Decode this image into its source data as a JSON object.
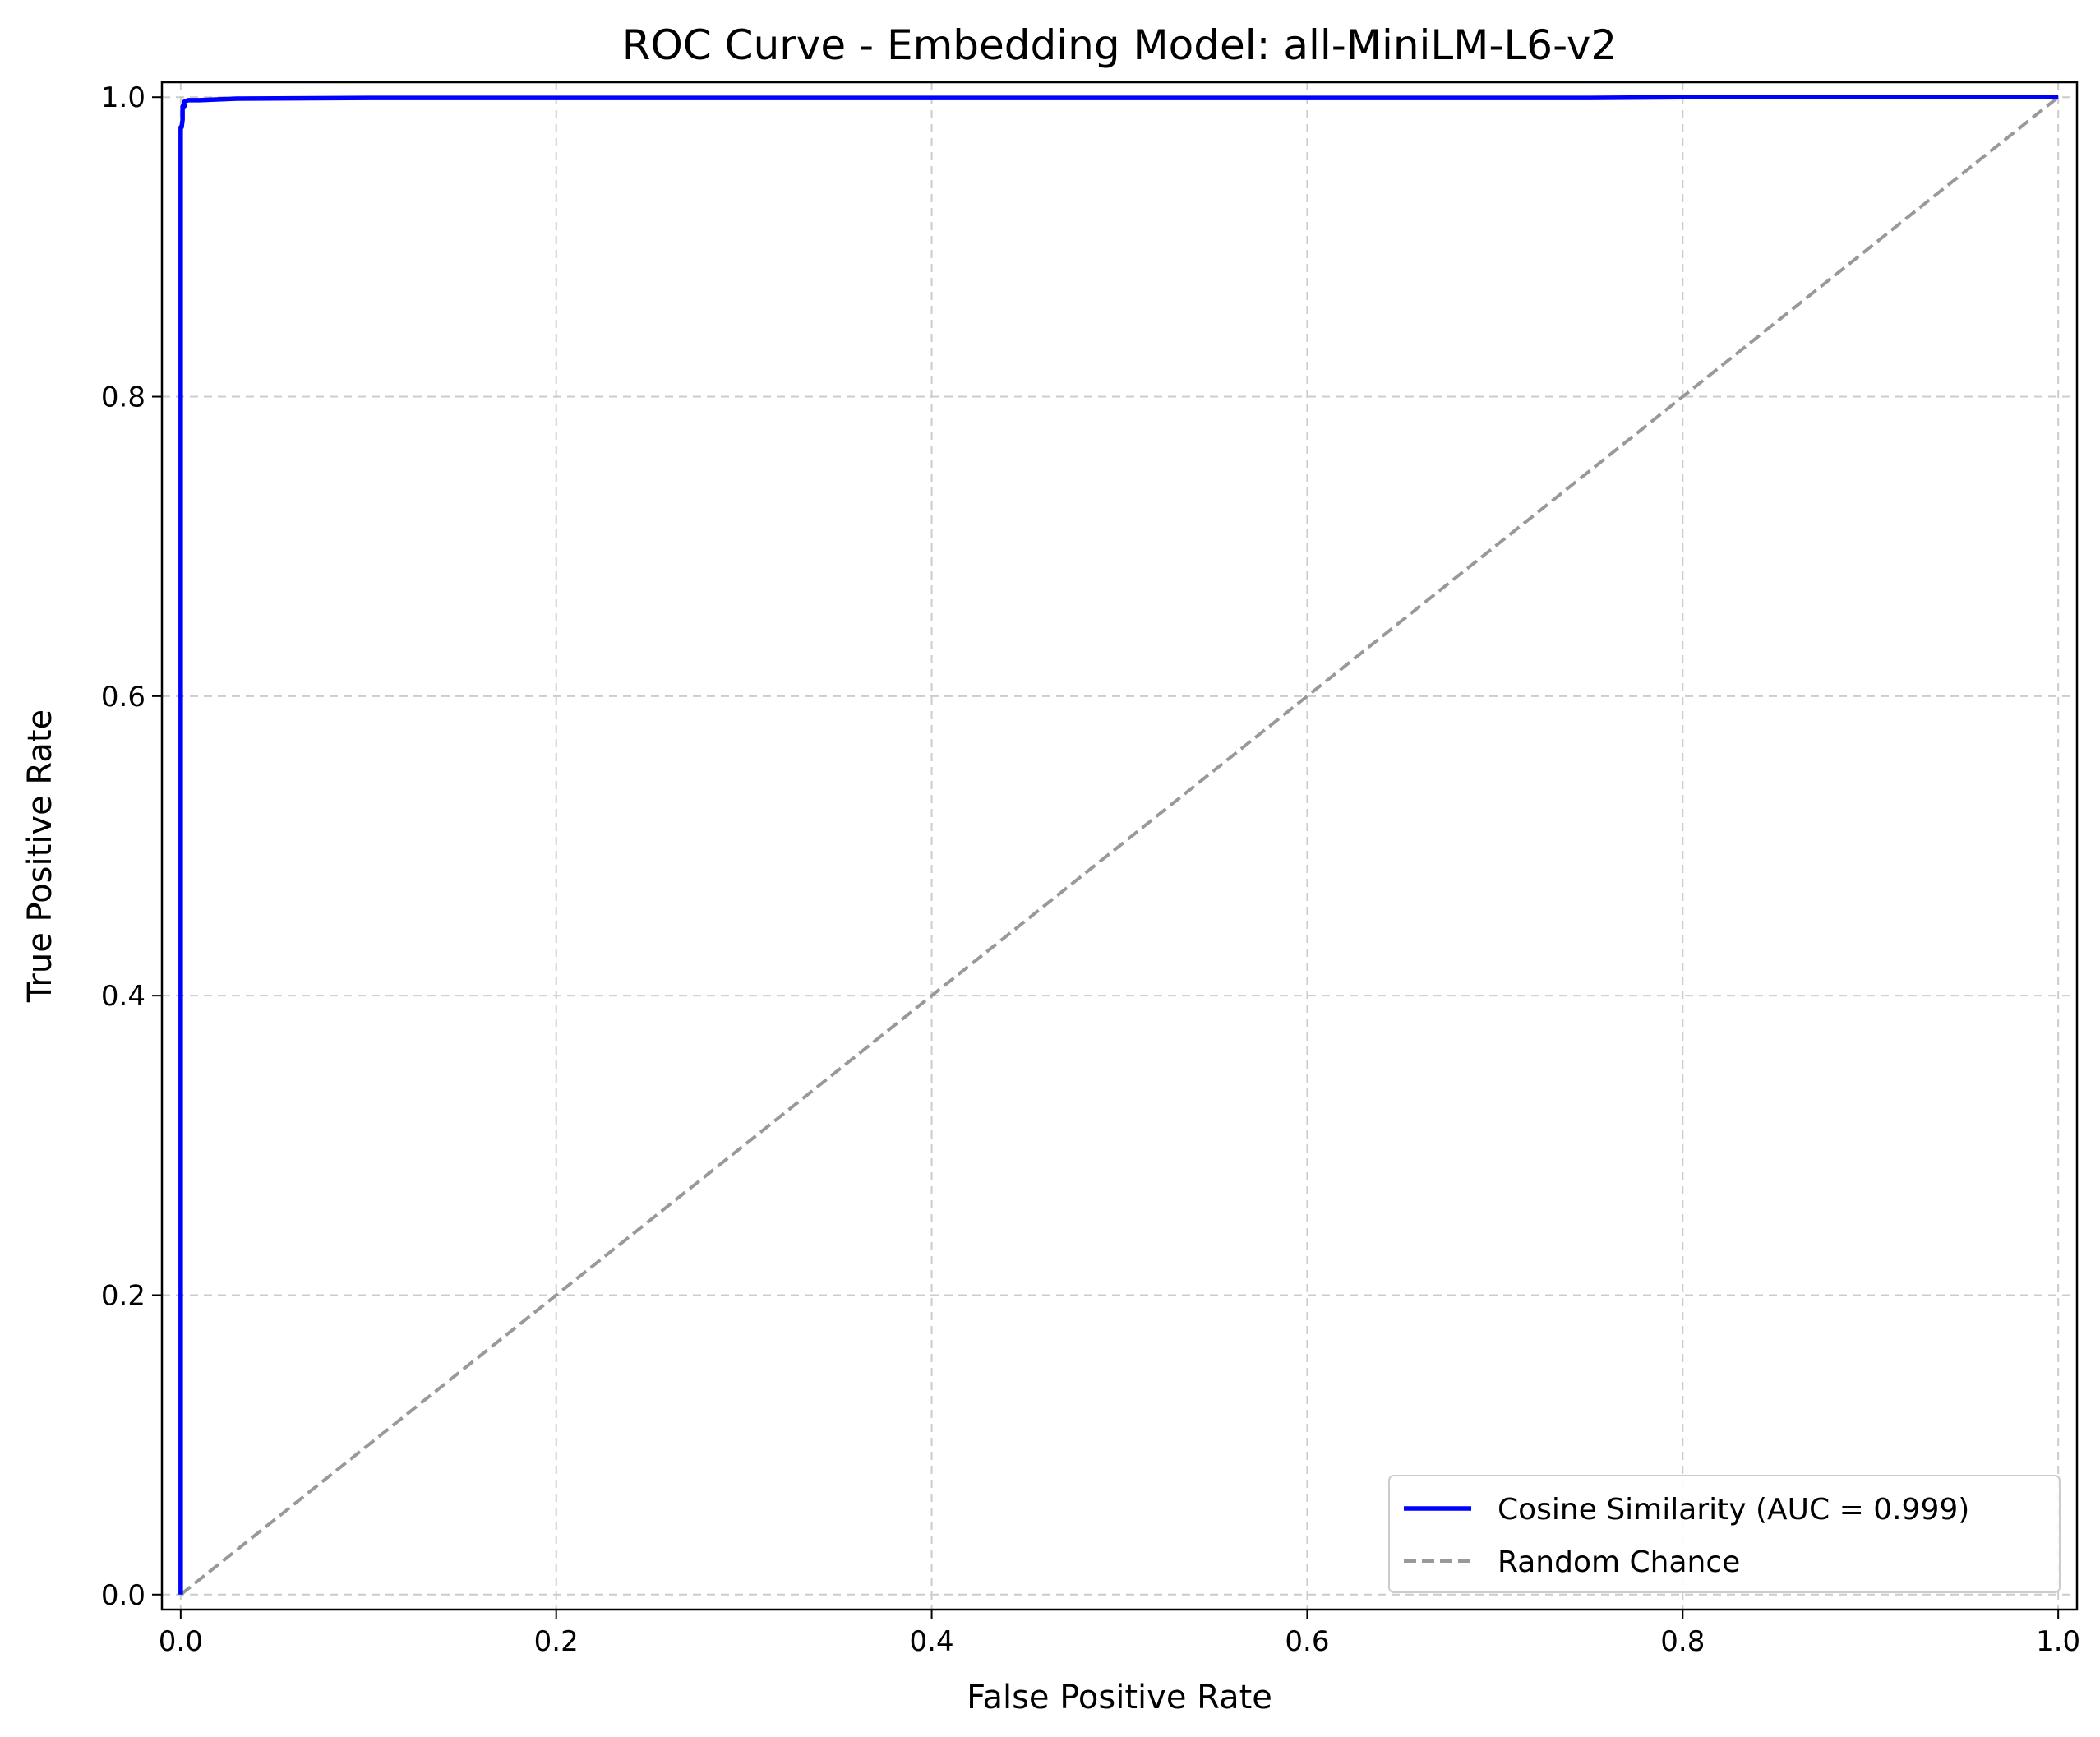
{
  "chart_data": {
    "type": "line",
    "title": "ROC Curve - Embedding Model: all-MiniLM-L6-v2",
    "xlabel": "False Positive Rate",
    "ylabel": "True Positive Rate",
    "xlim": [
      -0.01,
      1.01
    ],
    "ylim": [
      -0.01,
      1.01
    ],
    "xticks": [
      0.0,
      0.2,
      0.4,
      0.6,
      0.8,
      1.0
    ],
    "yticks": [
      0.0,
      0.2,
      0.4,
      0.6,
      0.8,
      1.0
    ],
    "xtick_labels": [
      "0.0",
      "0.2",
      "0.4",
      "0.6",
      "0.8",
      "1.0"
    ],
    "ytick_labels": [
      "0.0",
      "0.2",
      "0.4",
      "0.6",
      "0.8",
      "1.0"
    ],
    "grid": true,
    "legend_position": "lower-right",
    "series": [
      {
        "name": "Cosine Similarity (AUC = 0.999)",
        "color": "#0000ff",
        "style": "solid",
        "x": [
          0.0,
          0.0,
          0.0005,
          0.001,
          0.001,
          0.002,
          0.002,
          0.004,
          0.01,
          0.03,
          0.1,
          0.3,
          0.75,
          0.8,
          1.0
        ],
        "y": [
          0.0,
          0.98,
          0.98,
          0.985,
          0.994,
          0.994,
          0.997,
          0.998,
          0.998,
          0.999,
          0.9995,
          0.9995,
          0.9995,
          1.0,
          1.0
        ]
      },
      {
        "name": "Random Chance",
        "color": "#999999",
        "style": "dashed",
        "x": [
          0.0,
          1.0
        ],
        "y": [
          0.0,
          1.0
        ]
      }
    ]
  }
}
